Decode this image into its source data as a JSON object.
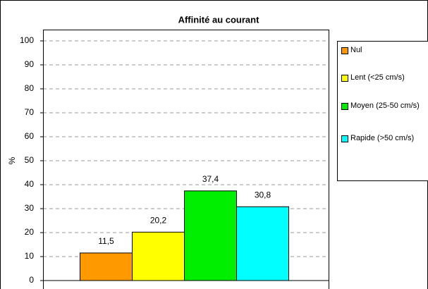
{
  "chart_data": {
    "type": "bar",
    "title": "Affinité au courant",
    "ylabel": "%",
    "categories": [
      null
    ],
    "series": [
      {
        "name": "Nul",
        "color": "#ff9900",
        "values": [
          11.5
        ],
        "value_labels": [
          "11,5"
        ]
      },
      {
        "name": "Lent (<25 cm/s)",
        "color": "#ffff00",
        "values": [
          20.2
        ],
        "value_labels": [
          "20,2"
        ]
      },
      {
        "name": "Moyen (25-50 cm/s)",
        "color": "#00ee00",
        "values": [
          37.4
        ],
        "value_labels": [
          "37,4"
        ]
      },
      {
        "name": "Rapide (>50 cm/s)",
        "color": "#00ffff",
        "values": [
          30.8
        ],
        "value_labels": [
          "30,8"
        ]
      }
    ],
    "ylim": [
      0,
      100
    ],
    "yticks": [
      0,
      10,
      20,
      30,
      40,
      50,
      60,
      70,
      80,
      90,
      100
    ],
    "grid": true,
    "legend": "right"
  }
}
